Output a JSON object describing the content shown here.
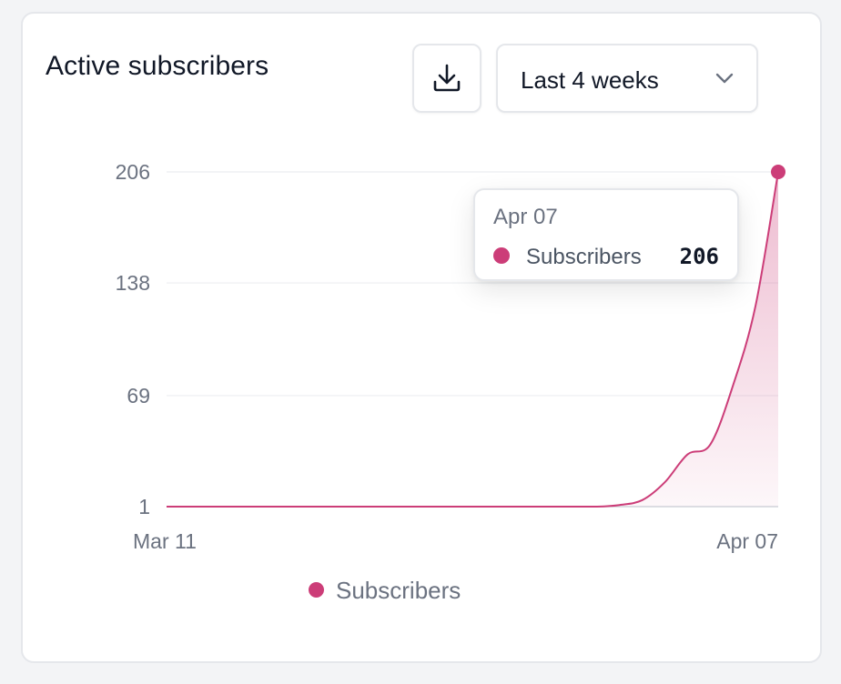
{
  "card": {
    "title": "Active subscribers",
    "range_select": {
      "value": "Last 4 weeks"
    }
  },
  "icons": {
    "download": "download-icon",
    "chevron": "chevron-down-icon"
  },
  "tooltip": {
    "date": "Apr 07",
    "series": "Subscribers",
    "value": "206"
  },
  "colors": {
    "accent": "#cc3d78",
    "grid": "#eceef1",
    "axis": "#d1d5db"
  },
  "chart_data": {
    "type": "area",
    "x_ticks": [
      "Mar 11",
      "Apr 07"
    ],
    "y_ticks": [
      1,
      69,
      138,
      206
    ],
    "ylim": [
      1,
      206
    ],
    "grid": true,
    "legend": "bottom",
    "series": [
      {
        "name": "Subscribers",
        "color": "#cc3d78",
        "values": [
          1,
          1,
          1,
          1,
          1,
          1,
          1,
          1,
          1,
          1,
          1,
          1,
          1,
          1,
          1,
          1,
          1,
          1,
          1,
          1,
          2,
          5,
          16,
          33,
          39,
          75,
          124,
          206
        ]
      }
    ]
  }
}
